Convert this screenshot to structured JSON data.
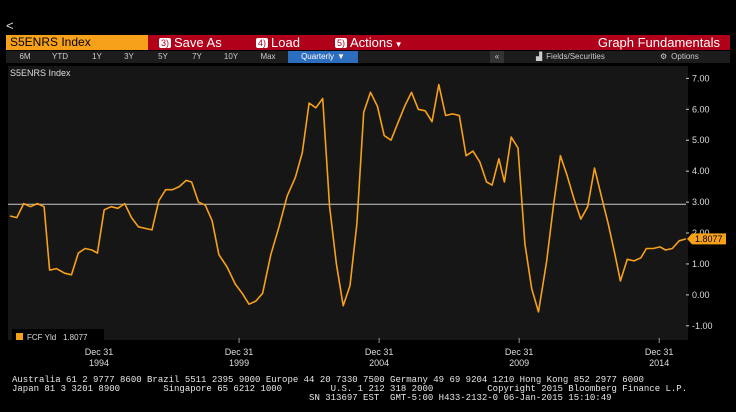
{
  "nav": {
    "back_symbol": "<"
  },
  "command_bar": {
    "ticker": "S5ENRS Index",
    "save_as": {
      "number": "3)",
      "label": "Save As"
    },
    "load": {
      "number": "4)",
      "label": "Load"
    },
    "actions": {
      "number": "5)",
      "label": "Actions"
    },
    "title": "Graph Fundamentals"
  },
  "period_tabs": [
    "6M",
    "YTD",
    "1Y",
    "3Y",
    "5Y",
    "7Y",
    "10Y",
    "Max"
  ],
  "frequency": "Quarterly",
  "toolbar": {
    "fields_label": "Fields/Securities",
    "options_label": "Options"
  },
  "colors": {
    "command_bar": "#b0001a",
    "ticker_bg": "#f7a11a",
    "series": "#f7a11a",
    "selected_tab": "#2d6dbd"
  },
  "chart_data": {
    "type": "line",
    "title": "S5ENRS Index",
    "y_ticks": [
      "7.00",
      "6.00",
      "5.00",
      "4.00",
      "3.00",
      "2.00",
      "1.00",
      "0.00",
      "-1.00"
    ],
    "ylim": [
      -1.2,
      7.4
    ],
    "xlim": [
      1991.75,
      2015.1
    ],
    "x_tick_labels": [
      {
        "line1": "Dec 31",
        "line2": "1994"
      },
      {
        "line1": "Dec 31",
        "line2": "1999"
      },
      {
        "line1": "Dec 31",
        "line2": "2004"
      },
      {
        "line1": "Dec 31",
        "line2": "2009"
      },
      {
        "line1": "Dec 31",
        "line2": "2014"
      }
    ],
    "x_tick_positions": [
      1995.0,
      2000.0,
      2005.0,
      2010.0,
      2015.0
    ],
    "reference_line": 2.93,
    "current_value": "1.8077",
    "legend": [
      {
        "name": "FCF Yld",
        "value": "1.8077"
      }
    ],
    "series": [
      {
        "name": "FCF Yld",
        "points": [
          [
            1991.75,
            2.55
          ],
          [
            1992.0,
            2.5
          ],
          [
            1992.25,
            2.95
          ],
          [
            1992.5,
            2.85
          ],
          [
            1992.75,
            2.95
          ],
          [
            1993.0,
            2.85
          ],
          [
            1993.2,
            0.8
          ],
          [
            1993.45,
            0.85
          ],
          [
            1993.75,
            0.7
          ],
          [
            1994.0,
            0.65
          ],
          [
            1994.25,
            1.35
          ],
          [
            1994.5,
            1.5
          ],
          [
            1994.75,
            1.45
          ],
          [
            1994.95,
            1.35
          ],
          [
            1995.2,
            2.75
          ],
          [
            1995.45,
            2.85
          ],
          [
            1995.7,
            2.8
          ],
          [
            1995.95,
            2.95
          ],
          [
            1996.2,
            2.5
          ],
          [
            1996.45,
            2.2
          ],
          [
            1996.7,
            2.15
          ],
          [
            1996.95,
            2.1
          ],
          [
            1997.2,
            3.05
          ],
          [
            1997.45,
            3.4
          ],
          [
            1997.7,
            3.4
          ],
          [
            1997.95,
            3.5
          ],
          [
            1998.2,
            3.7
          ],
          [
            1998.4,
            3.65
          ],
          [
            1998.65,
            3.0
          ],
          [
            1998.9,
            2.9
          ],
          [
            1999.15,
            2.4
          ],
          [
            1999.4,
            1.3
          ],
          [
            1999.7,
            0.9
          ],
          [
            2000.0,
            0.35
          ],
          [
            2000.25,
            0.05
          ],
          [
            2000.5,
            -0.3
          ],
          [
            2000.75,
            -0.2
          ],
          [
            2001.0,
            0.05
          ],
          [
            2001.3,
            1.3
          ],
          [
            2001.6,
            2.2
          ],
          [
            2001.9,
            3.2
          ],
          [
            2002.2,
            3.8
          ],
          [
            2002.45,
            4.6
          ],
          [
            2002.7,
            6.2
          ],
          [
            2002.95,
            6.05
          ],
          [
            2003.2,
            6.35
          ],
          [
            2003.45,
            2.85
          ],
          [
            2003.7,
            1.0
          ],
          [
            2003.95,
            -0.35
          ],
          [
            2004.2,
            0.3
          ],
          [
            2004.45,
            2.3
          ],
          [
            2004.7,
            5.9
          ],
          [
            2004.95,
            6.55
          ],
          [
            2005.2,
            6.1
          ],
          [
            2005.45,
            5.15
          ],
          [
            2005.7,
            5.0
          ],
          [
            2005.95,
            5.55
          ],
          [
            2006.2,
            6.1
          ],
          [
            2006.45,
            6.55
          ],
          [
            2006.7,
            6.0
          ],
          [
            2006.95,
            5.95
          ],
          [
            2007.2,
            5.6
          ],
          [
            2007.45,
            6.8
          ],
          [
            2007.7,
            5.8
          ],
          [
            2007.95,
            5.85
          ],
          [
            2008.2,
            5.8
          ],
          [
            2008.45,
            4.5
          ],
          [
            2008.7,
            4.65
          ],
          [
            2008.95,
            4.3
          ],
          [
            2009.2,
            3.65
          ],
          [
            2009.4,
            3.55
          ],
          [
            2009.65,
            4.4
          ],
          [
            2009.85,
            3.65
          ],
          [
            2010.1,
            5.1
          ],
          [
            2010.35,
            4.75
          ],
          [
            2010.6,
            1.65
          ],
          [
            2010.85,
            0.2
          ],
          [
            2011.1,
            -0.55
          ],
          [
            2011.4,
            1.1
          ],
          [
            2011.65,
            2.9
          ],
          [
            2011.9,
            4.5
          ],
          [
            2012.15,
            3.85
          ],
          [
            2012.4,
            3.1
          ],
          [
            2012.65,
            2.45
          ],
          [
            2012.9,
            2.85
          ],
          [
            2013.15,
            4.1
          ],
          [
            2013.4,
            3.2
          ],
          [
            2013.65,
            2.3
          ],
          [
            2013.9,
            1.3
          ],
          [
            2014.1,
            0.45
          ],
          [
            2014.35,
            1.15
          ],
          [
            2014.6,
            1.1
          ],
          [
            2014.85,
            1.2
          ],
          [
            2015.05,
            1.5
          ],
          [
            2015.3,
            1.5
          ],
          [
            2015.55,
            1.55
          ],
          [
            2015.75,
            1.45
          ],
          [
            2016.0,
            1.5
          ],
          [
            2016.25,
            1.75
          ],
          [
            2016.5,
            1.81
          ]
        ]
      }
    ]
  },
  "footer": {
    "line1": "Australia 61 2 9777 8600 Brazil 5511 2395 9000 Europe 44 20 7330 7500 Germany 49 69 9204 1210 Hong Kong 852 2977 6000",
    "line2": "Japan 81 3 3201 8900        Singapore 65 6212 1000         U.S. 1 212 318 2000          Copyright 2015 Bloomberg Finance L.P.",
    "line3": "                                                       SN 313697 EST  GMT-5:00 H433-2132-0 06-Jan-2015 15:10:49"
  }
}
